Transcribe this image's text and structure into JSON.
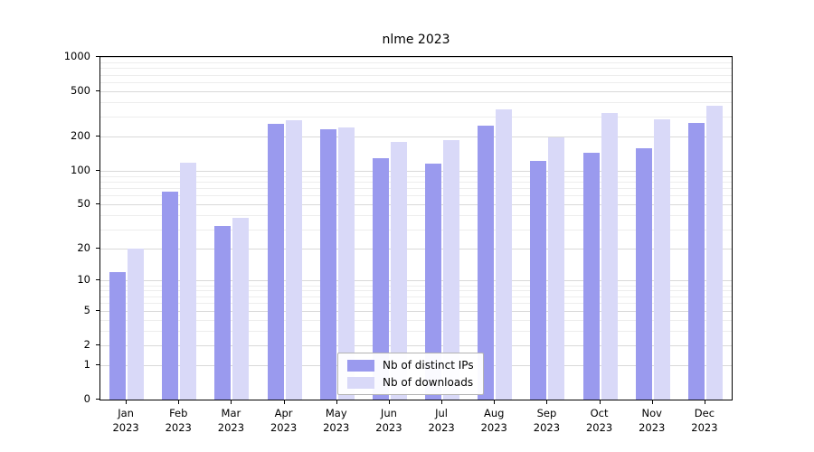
{
  "chart_data": {
    "type": "bar",
    "title": "nlme 2023",
    "categories": [
      "Jan",
      "Feb",
      "Mar",
      "Apr",
      "May",
      "Jun",
      "Jul",
      "Aug",
      "Sep",
      "Oct",
      "Nov",
      "Dec"
    ],
    "year": "2023",
    "series": [
      {
        "name": "Nb of distinct IPs",
        "color": "#9a9aee",
        "values": [
          12,
          65,
          32,
          260,
          230,
          128,
          115,
          250,
          122,
          145,
          158,
          265
        ]
      },
      {
        "name": "Nb of downloads",
        "color": "#d9d9f8",
        "values": [
          20,
          118,
          38,
          277,
          242,
          180,
          187,
          350,
          198,
          320,
          282,
          373
        ]
      }
    ],
    "yticks": [
      0,
      1,
      2,
      5,
      10,
      20,
      50,
      100,
      200,
      500,
      1000
    ],
    "minor_gridlines": [
      3,
      4,
      6,
      7,
      8,
      9,
      30,
      40,
      60,
      70,
      80,
      90,
      300,
      400,
      600,
      700,
      800,
      900
    ],
    "ylim": [
      0,
      1000
    ],
    "scale": "log1p",
    "grid": true,
    "legend_position": "bottom-center",
    "xlabel": "",
    "ylabel": ""
  },
  "colors": {
    "axis": "#000000",
    "grid_major": "#d9d9d9",
    "grid_minor": "#ededed",
    "background": "#ffffff",
    "legend_border": "#b3b3b3"
  }
}
